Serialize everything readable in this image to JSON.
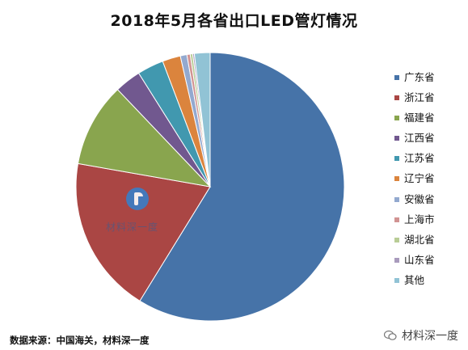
{
  "chart_data": {
    "type": "pie",
    "title": "2018年5月各省出口LED管灯情况",
    "legend_position": "right",
    "categories": [
      "广东省",
      "浙江省",
      "福建省",
      "江西省",
      "江苏省",
      "辽宁省",
      "安徽省",
      "上海市",
      "湖北省",
      "山东省",
      "其他"
    ],
    "values": [
      59.2,
      19.1,
      10.2,
      3.2,
      3.2,
      2.2,
      0.8,
      0.4,
      0.3,
      0.2,
      1.9
    ],
    "colors": [
      "#4673a8",
      "#aa4644",
      "#89a54e",
      "#71588f",
      "#4198af",
      "#db843d",
      "#93a9cf",
      "#d19392",
      "#b9cd96",
      "#a99bbd",
      "#91c3d5"
    ]
  },
  "footer": {
    "source": "数据来源：中国海关，材料深一度"
  },
  "watermarks": {
    "corner_text": "材料深一度",
    "center_text": "材料深一度"
  }
}
